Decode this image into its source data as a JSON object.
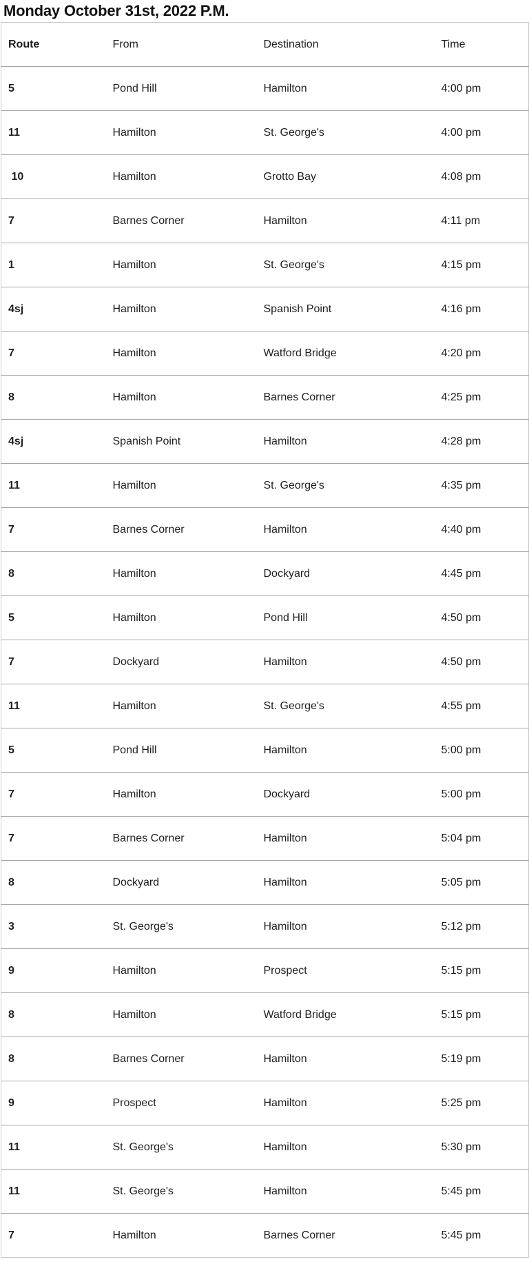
{
  "page": {
    "title": "Monday October 31st, 2022 P.M."
  },
  "colors": {
    "row_border": "#a6a6a6",
    "outer_border": "#c9c9c9",
    "text": "#1f1f1f",
    "title": "#111111"
  },
  "table": {
    "columns": [
      "Route",
      "From",
      "Destination",
      "Time"
    ],
    "rows": [
      {
        "route": "5",
        "from": "Pond Hill",
        "destination": "Hamilton",
        "time": "4:00 pm"
      },
      {
        "route": "11",
        "from": "Hamilton",
        "destination": "St. George's",
        "time": "4:00 pm"
      },
      {
        "route": " 10",
        "from": "Hamilton",
        "destination": "Grotto Bay",
        "time": "4:08 pm"
      },
      {
        "route": "7",
        "from": "Barnes Corner",
        "destination": "Hamilton",
        "time": "4:11 pm"
      },
      {
        "route": "1",
        "from": "Hamilton",
        "destination": "St. George's",
        "time": "4:15 pm"
      },
      {
        "route": "4sj",
        "from": "Hamilton",
        "destination": "Spanish Point",
        "time": "4:16 pm"
      },
      {
        "route": "7",
        "from": "Hamilton",
        "destination": "Watford Bridge",
        "time": "4:20 pm"
      },
      {
        "route": "8",
        "from": "Hamilton",
        "destination": "Barnes Corner",
        "time": "4:25 pm"
      },
      {
        "route": "4sj",
        "from": "Spanish Point",
        "destination": "Hamilton",
        "time": "4:28 pm"
      },
      {
        "route": "11",
        "from": "Hamilton",
        "destination": "St. George's",
        "time": "4:35 pm"
      },
      {
        "route": "7",
        "from": "Barnes Corner",
        "destination": "Hamilton",
        "time": "4:40 pm"
      },
      {
        "route": "8",
        "from": "Hamilton",
        "destination": "Dockyard",
        "time": "4:45 pm"
      },
      {
        "route": "5",
        "from": "Hamilton",
        "destination": "Pond Hill",
        "time": "4:50 pm"
      },
      {
        "route": "7",
        "from": "Dockyard",
        "destination": "Hamilton",
        "time": "4:50 pm"
      },
      {
        "route": "11",
        "from": "Hamilton",
        "destination": "St. George's",
        "time": "4:55 pm"
      },
      {
        "route": "5",
        "from": "Pond Hill",
        "destination": "Hamilton",
        "time": "5:00 pm"
      },
      {
        "route": "7",
        "from": "Hamilton",
        "destination": "Dockyard",
        "time": "5:00 pm"
      },
      {
        "route": "7",
        "from": "Barnes Corner",
        "destination": "Hamilton",
        "time": "5:04 pm"
      },
      {
        "route": "8",
        "from": "Dockyard",
        "destination": "Hamilton",
        "time": "5:05 pm"
      },
      {
        "route": "3",
        "from": "St. George's",
        "destination": "Hamilton",
        "time": "5:12 pm"
      },
      {
        "route": "9",
        "from": "Hamilton",
        "destination": "Prospect",
        "time": "5:15 pm"
      },
      {
        "route": "8",
        "from": "Hamilton",
        "destination": "Watford Bridge",
        "time": "5:15 pm"
      },
      {
        "route": "8",
        "from": "Barnes Corner",
        "destination": "Hamilton",
        "time": "5:19 pm"
      },
      {
        "route": "9",
        "from": "Prospect",
        "destination": "Hamilton",
        "time": "5:25 pm"
      },
      {
        "route": "11",
        "from": "St. George's",
        "destination": "Hamilton",
        "time": "5:30 pm"
      },
      {
        "route": "11",
        "from": "St. George's",
        "destination": "Hamilton",
        "time": "5:45 pm"
      },
      {
        "route": "7",
        "from": "Hamilton",
        "destination": "Barnes Corner",
        "time": "5:45 pm"
      }
    ]
  }
}
